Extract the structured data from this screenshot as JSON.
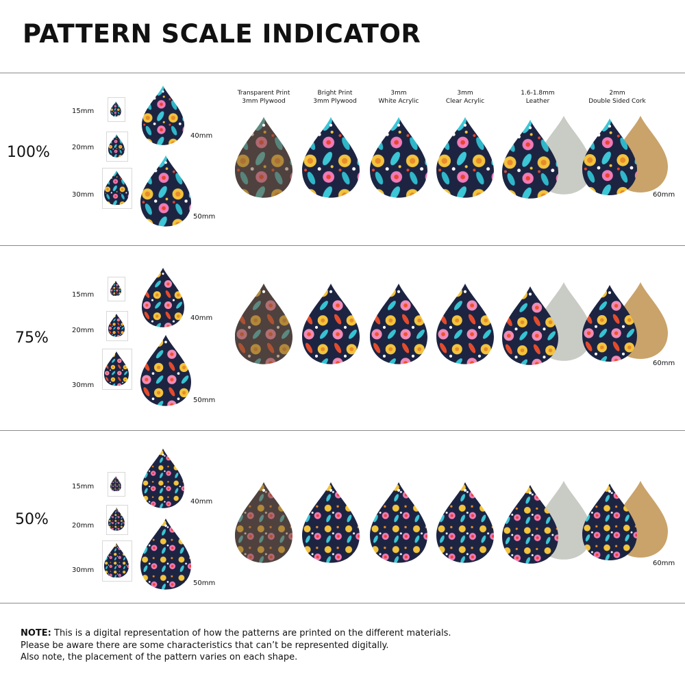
{
  "title": "PATTERN SCALE INDICATOR",
  "materials": [
    {
      "line1": "Transparent Print",
      "line2": "3mm Plywood"
    },
    {
      "line1": "Bright Print",
      "line2": "3mm Plywood"
    },
    {
      "line1": "3mm",
      "line2": "White Acrylic"
    },
    {
      "line1": "3mm",
      "line2": "Clear Acrylic"
    },
    {
      "line1": "1.6-1.8mm",
      "line2": "Leather"
    },
    {
      "line1": "2mm",
      "line2": "Double Sided Cork"
    }
  ],
  "sections": [
    {
      "scale": "100%",
      "s15": "15mm",
      "s20": "20mm",
      "s30": "30mm",
      "s40": "40mm",
      "s50": "50mm",
      "s60": "60mm"
    },
    {
      "scale": "75%",
      "s15": "15mm",
      "s20": "20mm",
      "s30": "30mm",
      "s40": "40mm",
      "s50": "50mm",
      "s60": "60mm"
    },
    {
      "scale": "50%",
      "s15": "15mm",
      "s20": "20mm",
      "s30": "30mm",
      "s40": "40mm",
      "s50": "50mm",
      "s60": "60mm"
    }
  ],
  "note": {
    "label": "NOTE:",
    "line1": " This is a digital representation of how the patterns are printed on the different materials.",
    "line2": "Please be aware there are some characteristics that can’t be represented digitally.",
    "line3": "Also note, the placement of the pattern varies on each shape."
  },
  "colors": {
    "navy": "#1c2442",
    "plywood": "#7a5a3a",
    "leather": "#c9cbc5",
    "cork": "#c9a36a",
    "rule": "#8a8a8a"
  }
}
